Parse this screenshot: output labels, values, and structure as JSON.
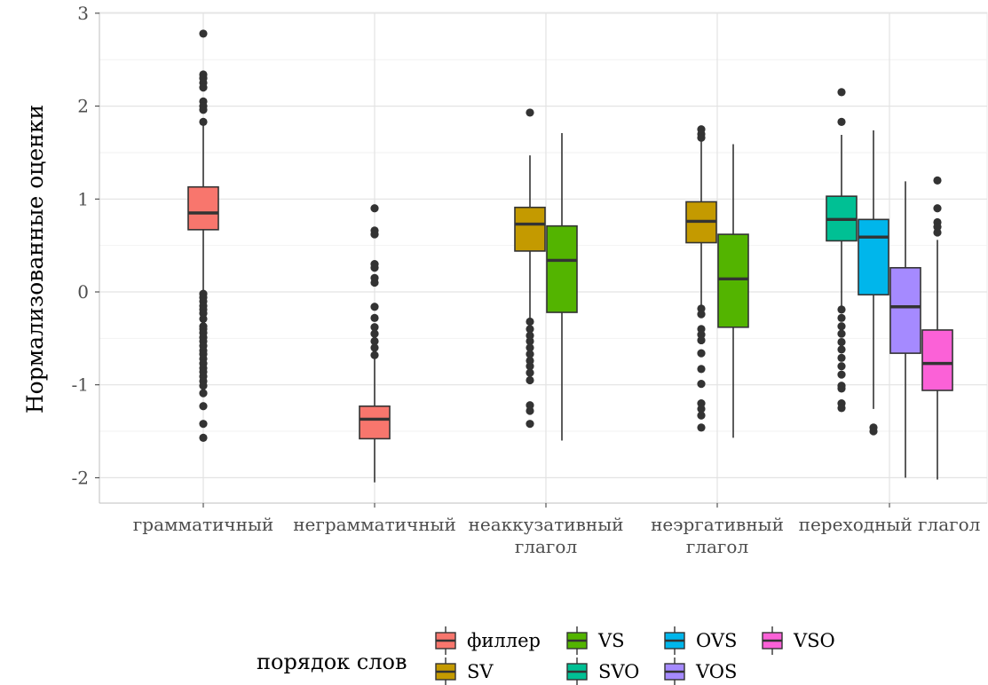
{
  "chart_data": {
    "type": "boxplot",
    "title": "",
    "xlabel": "",
    "ylabel": "Нормализованные оценки",
    "ylim": [
      -2.28,
      3.0
    ],
    "yticks": [
      -2,
      -1,
      0,
      1,
      2,
      3
    ],
    "ytick_labels": [
      "-2",
      "-1",
      "0",
      "1",
      "2",
      "3"
    ],
    "grid": true,
    "categories": [
      {
        "id": "grammatical",
        "lines": [
          "грамматичный"
        ]
      },
      {
        "id": "ungrammatical",
        "lines": [
          "неграмматичный"
        ]
      },
      {
        "id": "unaccusative",
        "lines": [
          "неаккузативный",
          "глагол"
        ]
      },
      {
        "id": "unergative",
        "lines": [
          "неэргативный",
          "глагол"
        ]
      },
      {
        "id": "transitive",
        "lines": [
          "переходный глагол"
        ]
      }
    ],
    "legend": {
      "title": "порядок слов",
      "position": "bottom",
      "entries": [
        {
          "name": "филлер",
          "color": "#F8766D"
        },
        {
          "name": "SV",
          "color": "#C49A00"
        },
        {
          "name": "VS",
          "color": "#53B400"
        },
        {
          "name": "SVO",
          "color": "#00C094"
        },
        {
          "name": "OVS",
          "color": "#00B6EB"
        },
        {
          "name": "VOS",
          "color": "#A58AFF"
        },
        {
          "name": "VSO",
          "color": "#FB61D7"
        }
      ]
    },
    "series": [
      {
        "name": "филлер",
        "category": "grammatical",
        "color": "#F8766D",
        "lower_whisker": -0.02,
        "q1": 0.67,
        "median": 0.85,
        "q3": 1.13,
        "upper_whisker": 1.8,
        "outliers": [
          2.78,
          2.34,
          2.3,
          2.25,
          2.2,
          2.05,
          2.0,
          1.96,
          1.83,
          -0.02,
          -0.06,
          -0.1,
          -0.15,
          -0.19,
          -0.23,
          -0.29,
          -0.37,
          -0.4,
          -0.44,
          -0.49,
          -0.53,
          -0.58,
          -0.63,
          -0.67,
          -0.72,
          -0.77,
          -0.82,
          -0.86,
          -0.91,
          -0.96,
          -1.01,
          -1.09,
          -1.23,
          -1.42,
          -1.57
        ]
      },
      {
        "name": "филлер",
        "category": "ungrammatical",
        "color": "#F8766D",
        "lower_whisker": -2.05,
        "q1": -1.58,
        "median": -1.37,
        "q3": -1.23,
        "upper_whisker": -0.72,
        "outliers": [
          0.9,
          0.66,
          0.62,
          0.3,
          0.26,
          0.15,
          0.1,
          -0.16,
          -0.28,
          -0.38,
          -0.45,
          -0.53,
          -0.6,
          -0.68
        ]
      },
      {
        "name": "SV",
        "category": "unaccusative",
        "color": "#C49A00",
        "lower_whisker": -0.32,
        "q1": 0.44,
        "median": 0.73,
        "q3": 0.91,
        "upper_whisker": 1.47,
        "outliers": [
          1.93,
          -0.32,
          -0.4,
          -0.47,
          -0.53,
          -0.6,
          -0.67,
          -0.74,
          -0.8,
          -0.87,
          -0.95,
          -1.22,
          -1.28,
          -1.42
        ]
      },
      {
        "name": "VS",
        "category": "unaccusative",
        "color": "#53B400",
        "lower_whisker": -1.6,
        "q1": -0.22,
        "median": 0.34,
        "q3": 0.71,
        "upper_whisker": 1.71,
        "outliers": []
      },
      {
        "name": "SV",
        "category": "unergative",
        "color": "#C49A00",
        "lower_whisker": -0.18,
        "q1": 0.53,
        "median": 0.76,
        "q3": 0.97,
        "upper_whisker": 1.65,
        "outliers": [
          1.75,
          1.7,
          1.66,
          -0.18,
          -0.24,
          -0.4,
          -0.46,
          -0.52,
          -0.66,
          -0.83,
          -0.99,
          -1.2,
          -1.26,
          -1.33,
          -1.46
        ]
      },
      {
        "name": "VS",
        "category": "unergative",
        "color": "#53B400",
        "lower_whisker": -1.57,
        "q1": -0.38,
        "median": 0.14,
        "q3": 0.62,
        "upper_whisker": 1.59,
        "outliers": []
      },
      {
        "name": "SVO",
        "category": "transitive",
        "color": "#00C094",
        "lower_whisker": -0.19,
        "q1": 0.55,
        "median": 0.78,
        "q3": 1.03,
        "upper_whisker": 1.69,
        "outliers": [
          2.15,
          1.83,
          -0.19,
          -0.28,
          -0.37,
          -0.45,
          -0.54,
          -0.62,
          -0.71,
          -0.8,
          -0.89,
          -1.01,
          -1.04,
          -1.2,
          -1.25
        ]
      },
      {
        "name": "OVS",
        "category": "transitive",
        "color": "#00B6EB",
        "lower_whisker": -1.26,
        "q1": -0.03,
        "median": 0.59,
        "q3": 0.78,
        "upper_whisker": 1.74,
        "outliers": [
          -1.46,
          -1.5
        ]
      },
      {
        "name": "VOS",
        "category": "transitive",
        "color": "#A58AFF",
        "lower_whisker": -2.0,
        "q1": -0.66,
        "median": -0.16,
        "q3": 0.26,
        "upper_whisker": 1.19,
        "outliers": []
      },
      {
        "name": "VSO",
        "category": "transitive",
        "color": "#FB61D7",
        "lower_whisker": -2.02,
        "q1": -1.06,
        "median": -0.77,
        "q3": -0.41,
        "upper_whisker": 0.56,
        "outliers": [
          1.2,
          0.9,
          0.75,
          0.7,
          0.64
        ]
      }
    ]
  }
}
